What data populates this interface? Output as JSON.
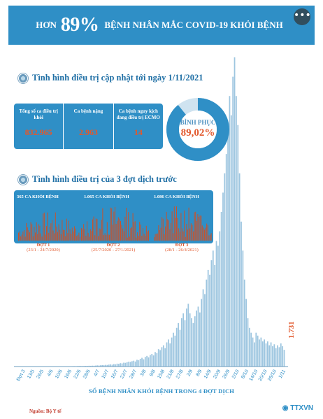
{
  "header": {
    "prefix": "HƠN",
    "percent": "89%",
    "title": "BỆNH NHÂN MẮC COVID-19 KHỎI BỆNH"
  },
  "more_icon": "more-horizontal-icon",
  "section1": {
    "title": "Tình hình điều trị cập nhật tới ngày 1/11/2021"
  },
  "stats": [
    {
      "label": "Tổng số ca điều trị khỏi",
      "value": "832.965"
    },
    {
      "label": "Ca bệnh nặng",
      "value": "2.963"
    },
    {
      "label": "Ca bệnh nguy kịch đang điều trị ECMO",
      "value": "14"
    }
  ],
  "recovery": {
    "label": "BÌNH PHỤC",
    "value": "89,02%",
    "fraction": 0.8902
  },
  "section2": {
    "title": "Tình hình điều trị của 3 đợt dịch trước"
  },
  "waves": [
    {
      "total": "365 CA KHỎI BỆNH",
      "name": "ĐỢT 1",
      "dates": "(23/1 - 24/7/2020)"
    },
    {
      "total": "1.065 CA KHỎI BỆNH",
      "name": "ĐỢT 2",
      "dates": "(25/7/2020 - 27/1/2021)"
    },
    {
      "total": "1.086 CA KHỎI BỆNH",
      "name": "ĐỢT 3",
      "dates": "(28/1 - 26/4/2021)"
    }
  ],
  "footer": {
    "source": "Nguồn: Bộ Y tế",
    "logo": "TTXVN"
  },
  "colors": {
    "accent": "#2f8fc6",
    "highlight": "#e2582c"
  },
  "chart_data": {
    "type": "bar",
    "xlabel": "SỐ BỆNH NHÂN KHỎI BỆNH TRONG 4 ĐỢT DỊCH",
    "tick_labels": [
      "Đợt 3",
      "13/5",
      "26/5",
      "4/6",
      "10/6",
      "16/6",
      "22/6",
      "28/6",
      "4/7",
      "10/7",
      "16/7",
      "22/7",
      "28/7",
      "3/8",
      "9/8",
      "15/8",
      "21/8",
      "27/8",
      "2/9",
      "8/9",
      "14/9",
      "20/9",
      "26/9",
      "2/10",
      "8/10",
      "14/10",
      "20/10",
      "26/10",
      "1/11"
    ],
    "last_value_label": "1.731",
    "values": [
      2,
      2,
      3,
      2,
      4,
      3,
      2,
      5,
      4,
      3,
      6,
      5,
      4,
      6,
      8,
      7,
      9,
      8,
      10,
      12,
      9,
      14,
      11,
      10,
      16,
      18,
      15,
      20,
      22,
      25,
      18,
      30,
      28,
      35,
      30,
      40,
      45,
      38,
      50,
      55,
      60,
      52,
      58,
      70,
      65,
      80,
      75,
      90,
      85,
      100,
      120,
      110,
      130,
      150,
      140,
      170,
      160,
      200,
      220,
      190,
      250,
      230,
      300,
      280,
      350,
      320,
      400,
      380,
      450,
      500,
      480,
      550,
      600,
      520,
      700,
      650,
      800,
      900,
      750,
      1000,
      1100,
      950,
      1200,
      1300,
      1150,
      1500,
      1400,
      1800,
      1700,
      2000,
      2200,
      1900,
      2500,
      2800,
      2400,
      3000,
      3500,
      3200,
      4000,
      4500,
      3800,
      5000,
      5500,
      4800,
      6000,
      6500,
      5500,
      5000,
      4500,
      5200,
      5800,
      6200,
      5600,
      7000,
      8000,
      7500,
      9000,
      10000,
      9500,
      11000,
      12000,
      10500,
      13000,
      12500,
      14000,
      16000,
      18000,
      20000,
      22000,
      25000,
      28000,
      26000,
      30000,
      32000,
      28000,
      25000,
      20000,
      15000,
      12000,
      9000,
      7000,
      5000,
      4000,
      3500,
      3000,
      2500,
      3500,
      3200,
      2800,
      3000,
      2600,
      2800,
      2400,
      2600,
      2200,
      2500,
      2100,
      2300,
      1900,
      2200,
      2000,
      2400,
      2100,
      1731
    ]
  }
}
